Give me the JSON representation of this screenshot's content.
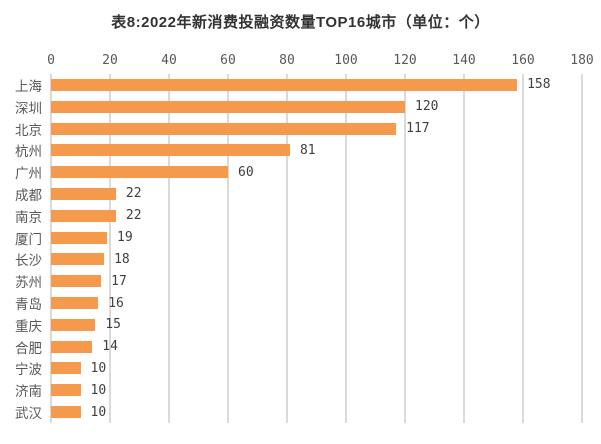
{
  "title": "表8:2022年新消费投融资数量TOP16城市（单位：个）",
  "colors": {
    "bar": "#f59a4c",
    "gridline": "#dadada",
    "title_text": "#333333",
    "axis_text": "#595959",
    "value_text": "#404040",
    "background": "#ffffff"
  },
  "chart_data": {
    "type": "bar",
    "orientation": "horizontal",
    "title": "表8:2022年新消费投融资数量TOP16城市（单位：个）",
    "xlabel": "",
    "ylabel": "",
    "categories": [
      "上海",
      "深圳",
      "北京",
      "杭州",
      "广州",
      "成都",
      "南京",
      "厦门",
      "长沙",
      "苏州",
      "青岛",
      "重庆",
      "合肥",
      "宁波",
      "济南",
      "武汉"
    ],
    "values": [
      158,
      120,
      117,
      81,
      60,
      22,
      22,
      19,
      18,
      17,
      16,
      15,
      14,
      10,
      10,
      10
    ],
    "xlim": [
      0,
      180
    ],
    "x_ticks": [
      0,
      20,
      40,
      60,
      80,
      100,
      120,
      140,
      160,
      180
    ],
    "x_ticks_position": "top",
    "grid": true,
    "value_labels": true,
    "legend": false
  }
}
